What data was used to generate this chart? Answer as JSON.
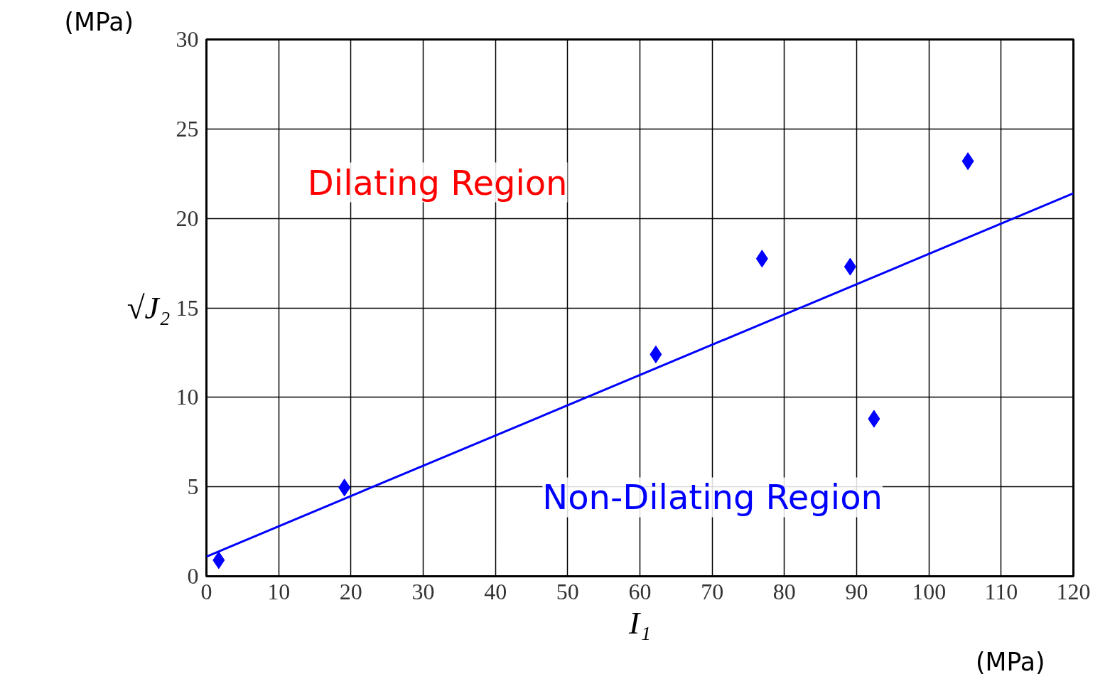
{
  "chart_data": {
    "type": "scatter",
    "xlabel": "I₁",
    "ylabel": "√J₂",
    "x": [
      1.7,
      19.1,
      62.2,
      76.9,
      89.1,
      92.4,
      105.4
    ],
    "series": [
      {
        "color": "#0000ff",
        "marker": "diamond",
        "values": [
          0.9,
          4.96,
          12.4,
          17.75,
          17.3,
          8.8,
          23.2
        ]
      },
      {
        "type": "line",
        "color": "#0000ff",
        "x": [
          0,
          120
        ],
        "values": [
          1.1,
          21.4
        ]
      }
    ],
    "xlim": [
      0,
      120
    ],
    "ylim": [
      0,
      30
    ],
    "xticks": [
      0,
      10,
      20,
      30,
      40,
      50,
      60,
      70,
      80,
      90,
      100,
      110,
      120
    ],
    "yticks": [
      0,
      5,
      10,
      15,
      20,
      25,
      30
    ],
    "grid": true,
    "annotations": [
      "Dilating Region",
      "Non-Dilating Region",
      "(MPa)",
      "(MPa)"
    ]
  }
}
